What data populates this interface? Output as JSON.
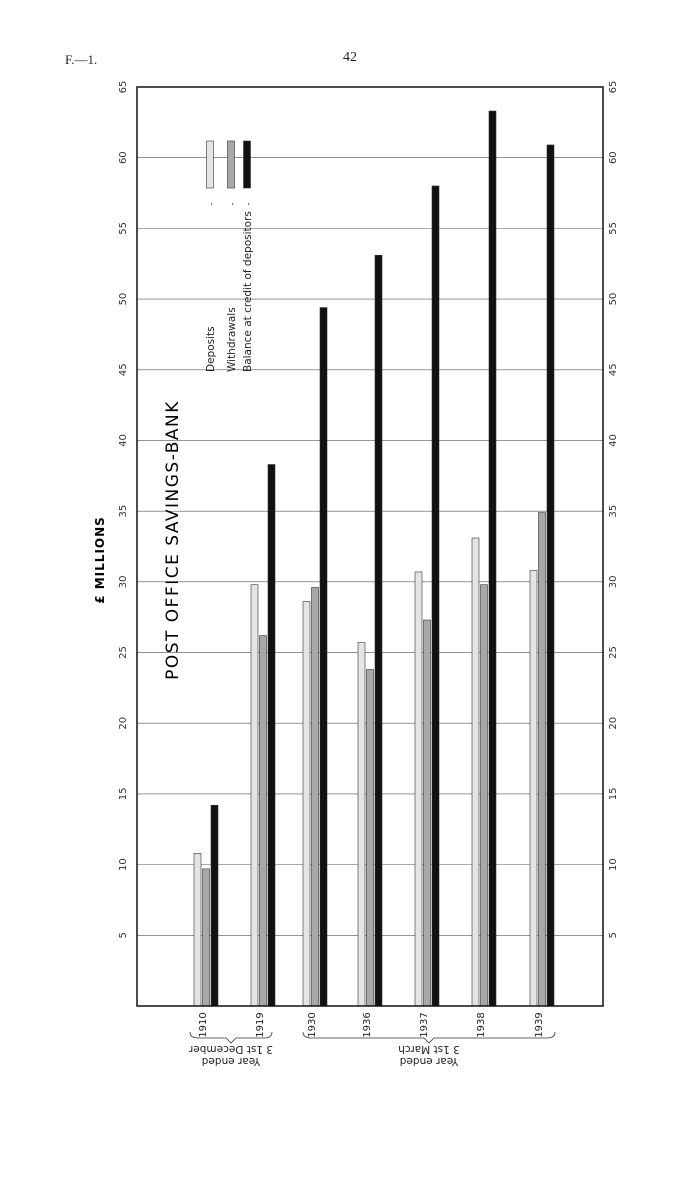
{
  "page": {
    "code": "F.—1.",
    "number": "42"
  },
  "chart_data": {
    "type": "bar",
    "orientation": "rotated-90-clockwise",
    "title": "POST OFFICE SAVINGS-BANK",
    "ylabel": "£ MILLIONS",
    "ylim": [
      0,
      65
    ],
    "yticks": [
      5,
      10,
      15,
      20,
      25,
      30,
      35,
      40,
      45,
      50,
      55,
      60,
      65
    ],
    "grid": true,
    "legend_position": "top-left",
    "categories": [
      "1910",
      "1919",
      "1930",
      "1936",
      "1937",
      "1938",
      "1939"
    ],
    "series": [
      {
        "name": "Deposits",
        "color": "#e4e4e4",
        "values": [
          10.8,
          29.8,
          28.6,
          25.7,
          30.7,
          33.1,
          30.8
        ]
      },
      {
        "name": "Withdrawals",
        "color": "#a8a8a8",
        "values": [
          9.7,
          26.2,
          29.6,
          23.8,
          27.3,
          29.8,
          34.9
        ]
      },
      {
        "name": "Balance at credit of depositors",
        "color": "#111111",
        "values": [
          14.2,
          38.3,
          49.4,
          53.1,
          58.0,
          63.3,
          60.9
        ]
      }
    ],
    "legend_separator": "-",
    "category_groups": [
      {
        "label_line1": "3 1st December",
        "label_line2": "Year ended",
        "categories": [
          "1910",
          "1919"
        ]
      },
      {
        "label_line1": "3 1st March",
        "label_line2": "Year ended",
        "categories": [
          "1930",
          "1936",
          "1937",
          "1938",
          "1939"
        ]
      }
    ]
  }
}
